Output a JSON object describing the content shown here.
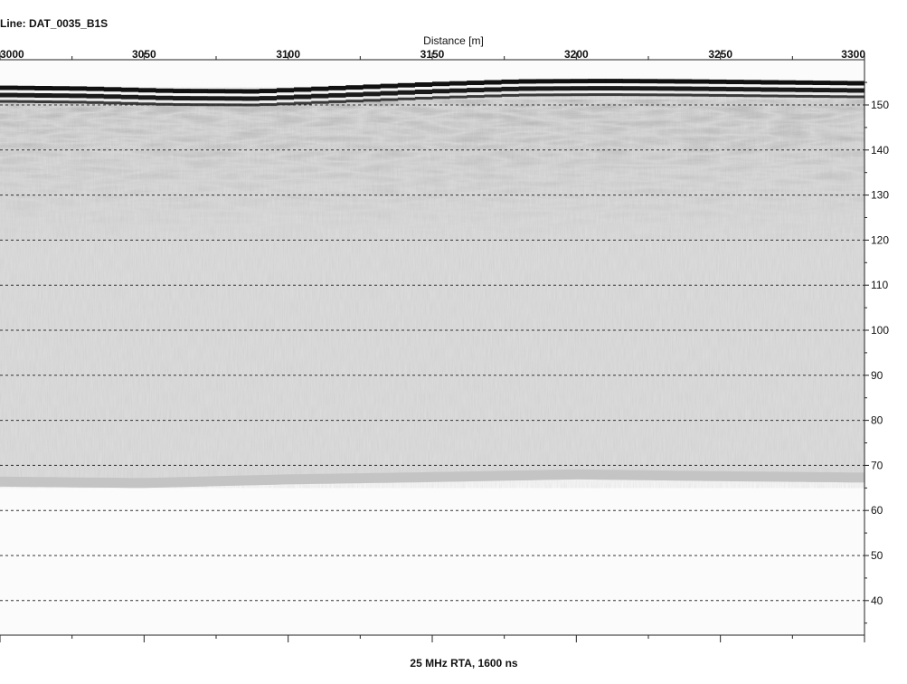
{
  "chart_data": {
    "type": "heatmap",
    "title": "Line: DAT_0035_B1S",
    "xlabel": "Distance [m]",
    "footer": "25 MHz RTA, 1600 ns",
    "x_range": [
      3000,
      3300
    ],
    "x_ticks": [
      3000,
      3050,
      3100,
      3150,
      3200,
      3250,
      3300
    ],
    "y_range": [
      33,
      155
    ],
    "y_ticks": [
      150,
      140,
      130,
      120,
      110,
      100,
      90,
      80,
      70,
      60,
      50,
      40
    ],
    "grid": "dashed horizontal at y ticks",
    "surface_elevation": {
      "x": [
        3000,
        3030,
        3060,
        3090,
        3120,
        3150,
        3180,
        3210,
        3240,
        3270,
        3300
      ],
      "y": [
        152.5,
        152.3,
        151.8,
        151.7,
        152.5,
        153.3,
        153.9,
        154.0,
        153.9,
        153.7,
        153.5
      ]
    },
    "signal_bottom_elevation": {
      "x": [
        3000,
        3050,
        3100,
        3150,
        3200,
        3250,
        3300
      ],
      "y": [
        65.3,
        65.0,
        65.8,
        66.3,
        66.9,
        66.5,
        66.2
      ]
    },
    "colormap": "grayscale"
  }
}
